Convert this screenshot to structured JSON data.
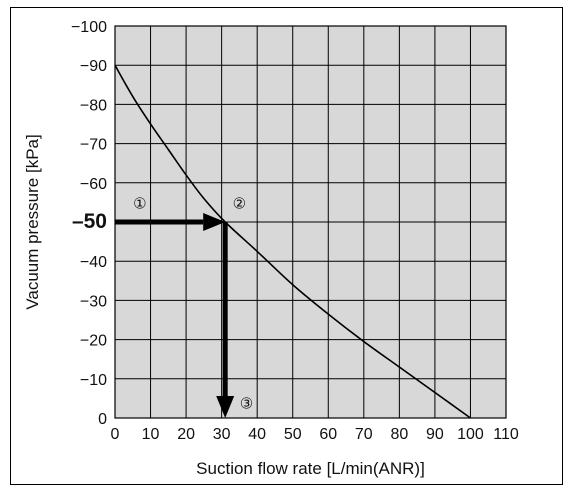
{
  "chart_data": {
    "type": "line",
    "xlabel": "Suction flow rate [L/min(ANR)]",
    "ylabel": "Vacuum pressure [kPa]",
    "xlim": [
      0,
      110
    ],
    "ylim": [
      0,
      -100
    ],
    "grid": true,
    "x_ticks": [
      0,
      10,
      20,
      30,
      40,
      50,
      60,
      70,
      80,
      90,
      100,
      110
    ],
    "x_tick_labels": [
      "0",
      "10",
      "20",
      "30",
      "40",
      "50",
      "60",
      "70",
      "80",
      "90",
      "100",
      "110"
    ],
    "y_ticks": [
      -100,
      -90,
      -80,
      -70,
      -60,
      -50,
      -40,
      -30,
      -20,
      -10,
      0
    ],
    "y_tick_labels": [
      "−100",
      "−90",
      "−80",
      "−70",
      "−60",
      "–50",
      "−40",
      "−30",
      "−20",
      "−10",
      "0"
    ],
    "highlighted_y_tick": -50,
    "series": [
      {
        "x": [
          0,
          5,
          10,
          15,
          20,
          25,
          31,
          40,
          50,
          60,
          70,
          80,
          90,
          100
        ],
        "y": [
          -90,
          -82,
          -75,
          -68.5,
          -62,
          -56,
          -50,
          -42.5,
          -34,
          -26.5,
          -19.5,
          -13,
          -6.5,
          0
        ]
      }
    ],
    "annotations": [
      {
        "label": "①",
        "x": 7,
        "y": -55
      },
      {
        "label": "②",
        "x": 35,
        "y": -55
      },
      {
        "label": "③",
        "x": 37,
        "y": -4
      }
    ],
    "arrows": [
      {
        "from": [
          0,
          -50
        ],
        "to": [
          31,
          -50
        ]
      },
      {
        "from": [
          31,
          -50
        ],
        "to": [
          31,
          0
        ]
      }
    ]
  }
}
